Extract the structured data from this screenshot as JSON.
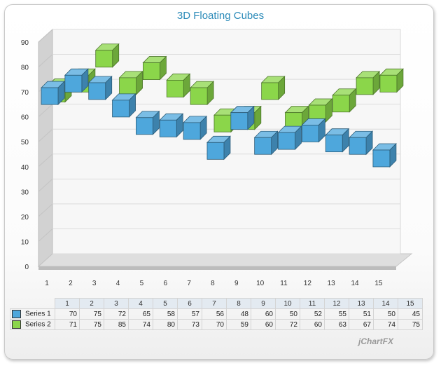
{
  "chart_data": {
    "type": "bar",
    "subtype": "3d-floating-cubes",
    "title": "3D Floating Cubes",
    "categories": [
      "1",
      "2",
      "3",
      "4",
      "5",
      "6",
      "7",
      "8",
      "9",
      "10",
      "11",
      "12",
      "13",
      "14",
      "15"
    ],
    "ylim": [
      0,
      90
    ],
    "yticks": [
      0,
      10,
      20,
      30,
      40,
      50,
      60,
      70,
      80,
      90
    ],
    "grid": true,
    "legend": "data-table-bottom",
    "series": [
      {
        "name": "Series 1",
        "color": "#4ea7dc",
        "values": [
          70,
          75,
          72,
          65,
          58,
          57,
          56,
          48,
          60,
          50,
          52,
          55,
          51,
          50,
          45
        ]
      },
      {
        "name": "Series 2",
        "color": "#8bd64a",
        "values": [
          71,
          75,
          85,
          74,
          80,
          73,
          70,
          59,
          60,
          72,
          60,
          63,
          67,
          74,
          75
        ]
      }
    ]
  },
  "watermark": "jChartFX"
}
